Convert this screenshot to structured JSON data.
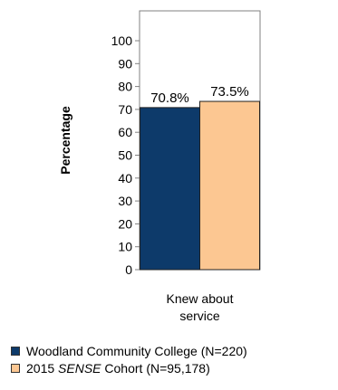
{
  "chart_data": {
    "type": "bar",
    "categories": [
      "Knew about service"
    ],
    "category_lines": [
      "Knew about",
      "service"
    ],
    "ylabel": "Percentage",
    "ylim": [
      0,
      100
    ],
    "yticks": [
      0,
      10,
      20,
      30,
      40,
      50,
      60,
      70,
      80,
      90,
      100
    ],
    "grid": false,
    "legend_position": "bottom",
    "series": [
      {
        "name_parts": [
          "Woodland Community College (N=220)"
        ],
        "values": [
          70.8
        ],
        "label": "70.8%",
        "color": "#0d3a6a"
      },
      {
        "name_parts": [
          "2015 ",
          "SENSE",
          " Cohort (N=95,178)"
        ],
        "values": [
          73.5
        ],
        "label": "73.5%",
        "color": "#fcc792"
      }
    ]
  }
}
